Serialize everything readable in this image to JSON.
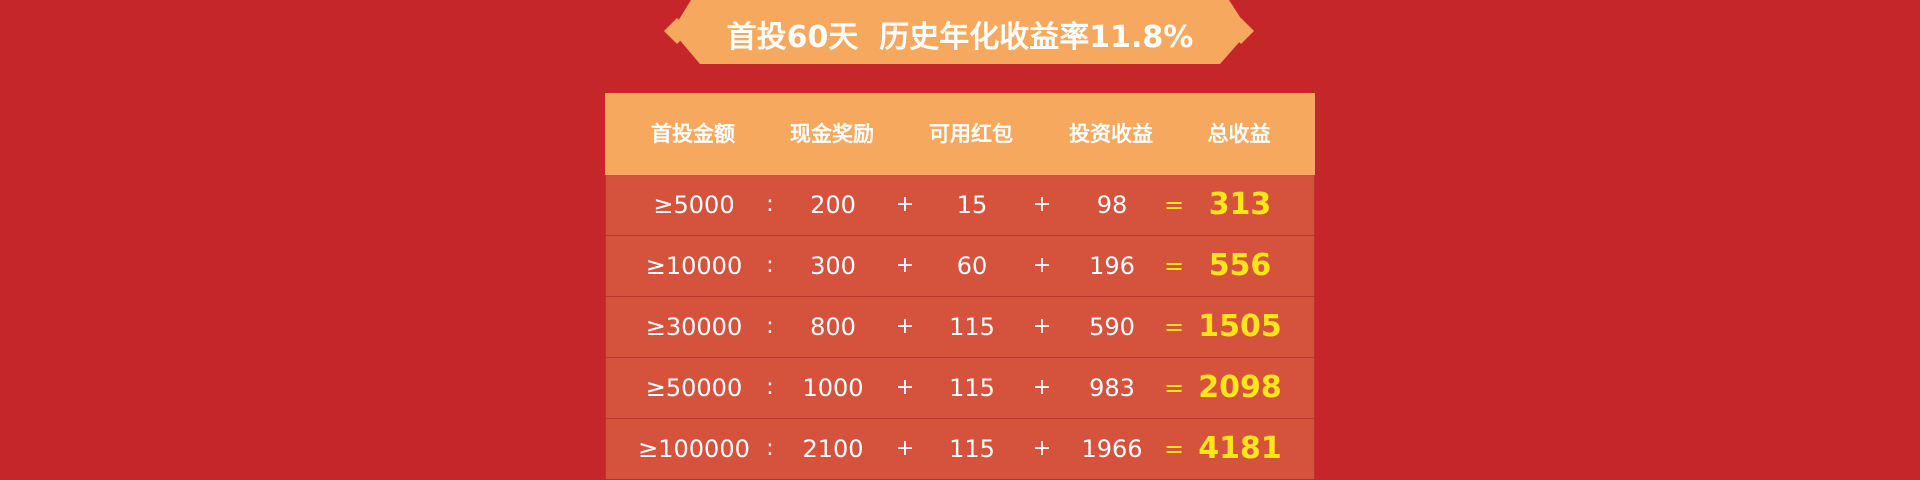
{
  "banner": {
    "title": "首投60天  历史年化收益率11.8%"
  },
  "colors": {
    "background": "#c42629",
    "header": "#f6a85e",
    "row": "#d5533c",
    "highlight": "#ffe51a",
    "text": "#ffffff"
  },
  "table": {
    "headers": [
      "首投金额",
      "现金奖励",
      "可用红包",
      "投资收益",
      "总收益"
    ],
    "rows": [
      {
        "amount": "≥5000",
        "sep": ":",
        "cash": "200",
        "plus1": "+",
        "redpacket": "15",
        "plus2": "+",
        "income": "98",
        "eq": "=",
        "total": "313"
      },
      {
        "amount": "≥10000",
        "sep": ":",
        "cash": "300",
        "plus1": "+",
        "redpacket": "60",
        "plus2": "+",
        "income": "196",
        "eq": "=",
        "total": "556"
      },
      {
        "amount": "≥30000",
        "sep": ":",
        "cash": "800",
        "plus1": "+",
        "redpacket": "115",
        "plus2": "+",
        "income": "590",
        "eq": "=",
        "total": "1505"
      },
      {
        "amount": "≥50000",
        "sep": ":",
        "cash": "1000",
        "plus1": "+",
        "redpacket": "115",
        "plus2": "+",
        "income": "983",
        "eq": "=",
        "total": "2098"
      },
      {
        "amount": "≥100000",
        "sep": ":",
        "cash": "2100",
        "plus1": "+",
        "redpacket": "115",
        "plus2": "+",
        "income": "1966",
        "eq": "=",
        "total": "4181"
      }
    ]
  }
}
